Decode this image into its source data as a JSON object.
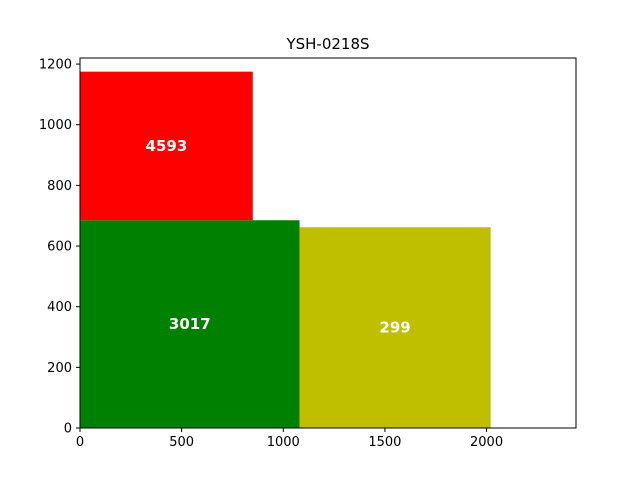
{
  "chart_data": {
    "type": "bar",
    "title": "YSH-0218S",
    "xlabel": "",
    "ylabel": "",
    "xlim": [
      0,
      2440
    ],
    "ylim": [
      0,
      1220
    ],
    "xticks": [
      0,
      500,
      1000,
      1500,
      2000
    ],
    "yticks": [
      0,
      200,
      400,
      600,
      800,
      1000,
      1200
    ],
    "grid": false,
    "rects": [
      {
        "label": "3017",
        "x": 0,
        "y": 0,
        "width": 1080,
        "height": 685,
        "color": "#008000"
      },
      {
        "label": "4593",
        "x": 0,
        "y": 685,
        "width": 850,
        "height": 490,
        "color": "#ff0000"
      },
      {
        "label": "299",
        "x": 1080,
        "y": 0,
        "width": 940,
        "height": 662,
        "color": "#bfbf00"
      }
    ]
  }
}
